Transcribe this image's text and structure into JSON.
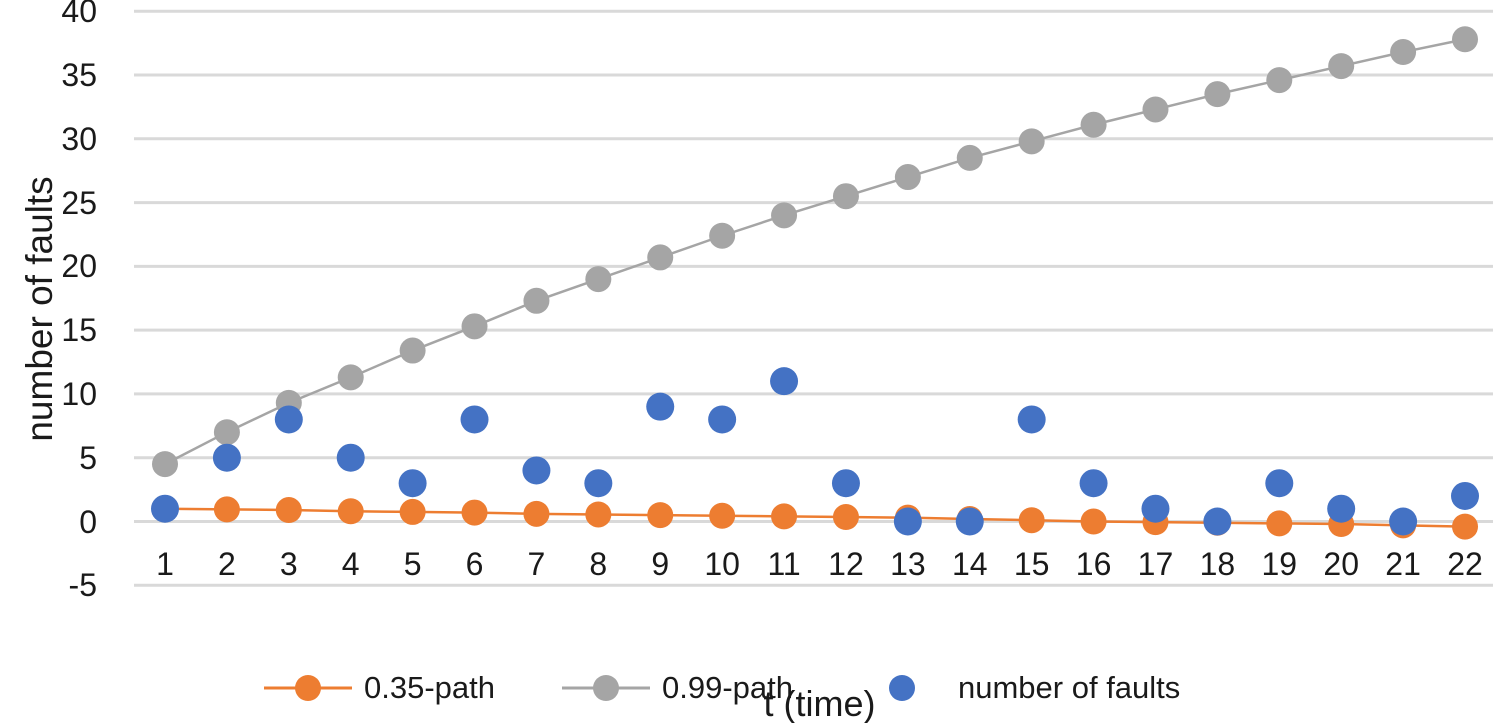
{
  "chart_data": {
    "type": "line+scatter",
    "title": "",
    "xlabel": "t (time)",
    "ylabel": "number of faults",
    "x": [
      1,
      2,
      3,
      4,
      5,
      6,
      7,
      8,
      9,
      10,
      11,
      12,
      13,
      14,
      15,
      16,
      17,
      18,
      19,
      20,
      21,
      22
    ],
    "series": [
      {
        "name": "0.35-path",
        "type": "line",
        "color": "#ED7D31",
        "values": [
          1.0,
          0.95,
          0.9,
          0.8,
          0.75,
          0.7,
          0.6,
          0.55,
          0.5,
          0.45,
          0.4,
          0.35,
          0.3,
          0.2,
          0.1,
          0.0,
          -0.05,
          -0.1,
          -0.15,
          -0.2,
          -0.3,
          -0.4
        ]
      },
      {
        "name": "0.99-path",
        "type": "line",
        "color": "#A5A5A5",
        "values": [
          4.5,
          7.0,
          9.3,
          11.3,
          13.4,
          15.3,
          17.3,
          19.0,
          20.7,
          22.4,
          24.0,
          25.5,
          27.0,
          28.5,
          29.8,
          31.1,
          32.3,
          33.5,
          34.6,
          35.7,
          36.8,
          37.8
        ]
      },
      {
        "name": "number of faults",
        "type": "scatter",
        "color": "#4472C4",
        "values": [
          1,
          5,
          8,
          5,
          3,
          8,
          4,
          3,
          9,
          8,
          11,
          3,
          0,
          0,
          8,
          3,
          1,
          0,
          3,
          1,
          0,
          2
        ]
      }
    ],
    "ylim": [
      -5,
      40
    ],
    "ytick_step": 5,
    "grid": true,
    "gridline_color": "#D9D9D9",
    "legend_position": "bottom"
  }
}
